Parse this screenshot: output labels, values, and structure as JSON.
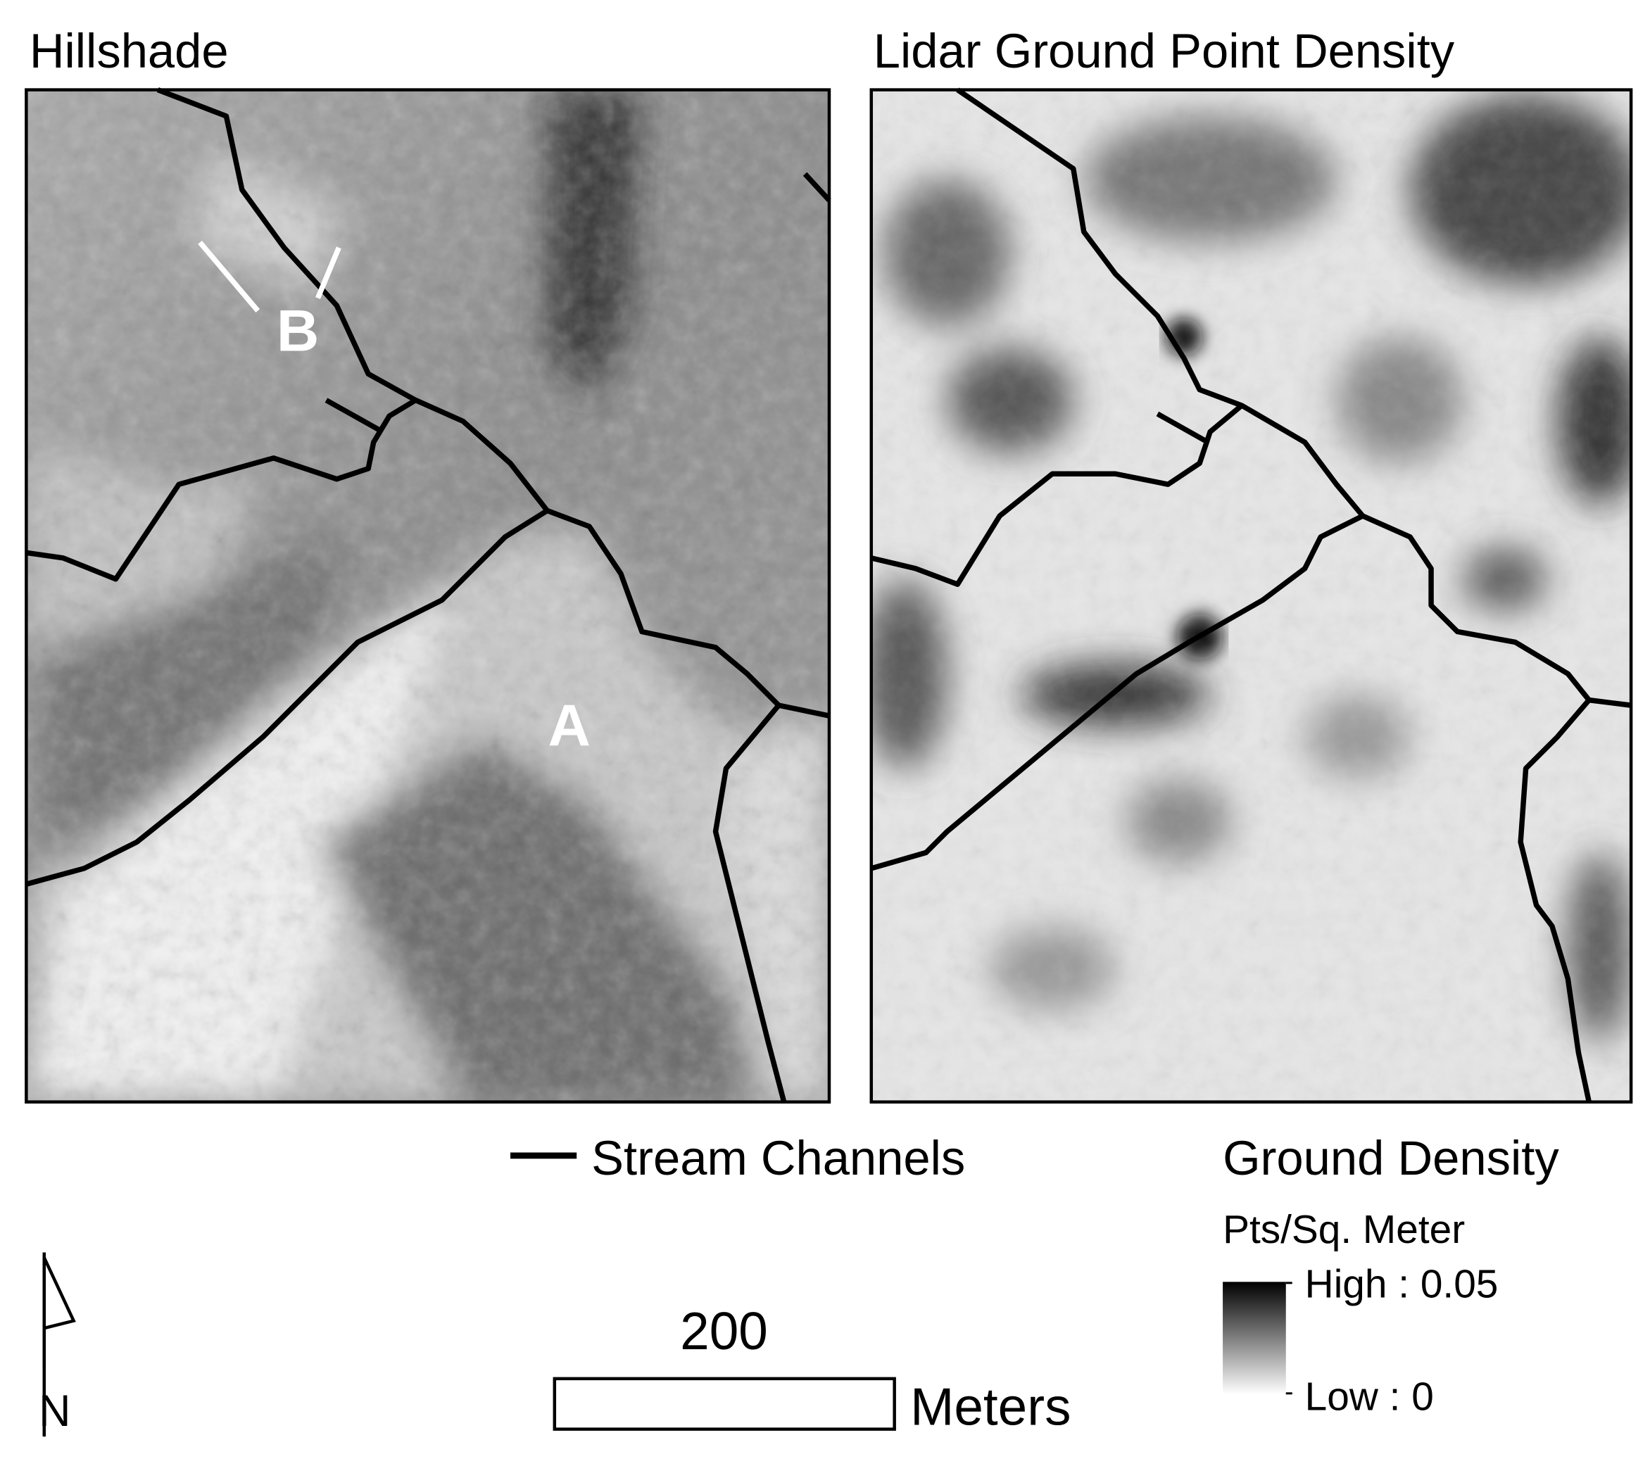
{
  "panels": [
    {
      "title": "Hillshade",
      "labels": [
        "B",
        "A"
      ]
    },
    {
      "title": "Lidar Ground Point Density"
    }
  ],
  "legend": {
    "stream": "Stream Channels",
    "density_title": "Ground Density",
    "density_units": "Pts/Sq. Meter",
    "high": "High : 0.05",
    "low": "Low : 0"
  },
  "scale_bar": {
    "distance": "200",
    "units": "Meters"
  },
  "north_arrow": "N"
}
